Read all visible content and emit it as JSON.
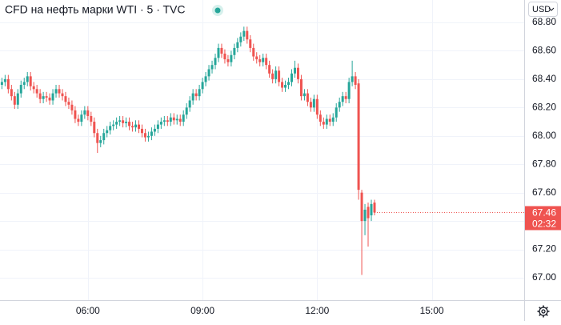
{
  "chart_data": {
    "type": "candlestick",
    "title": "CFD на нефть марки WTI · 5 · TVC",
    "currency": "USD",
    "countdown": "02:32",
    "up_color": "#26a69a",
    "down_color": "#ef5350",
    "grid": true,
    "x": [
      "03:45",
      "03:50",
      "03:55",
      "04:00",
      "04:05",
      "04:10",
      "04:15",
      "04:20",
      "04:25",
      "04:30",
      "04:35",
      "04:40",
      "04:45",
      "04:50",
      "04:55",
      "05:00",
      "05:05",
      "05:10",
      "05:15",
      "05:20",
      "05:25",
      "05:30",
      "05:35",
      "05:40",
      "05:45",
      "05:50",
      "05:55",
      "06:00",
      "06:05",
      "06:10",
      "06:15",
      "06:20",
      "06:25",
      "06:30",
      "06:35",
      "06:40",
      "06:45",
      "06:50",
      "06:55",
      "07:00",
      "07:05",
      "07:10",
      "07:15",
      "07:20",
      "07:25",
      "07:30",
      "07:35",
      "07:40",
      "07:45",
      "07:50",
      "07:55",
      "08:00",
      "08:05",
      "08:10",
      "08:15",
      "08:20",
      "08:25",
      "08:30",
      "08:35",
      "08:40",
      "08:45",
      "08:50",
      "08:55",
      "09:00",
      "09:05",
      "09:10",
      "09:15",
      "09:20",
      "09:25",
      "09:30",
      "09:35",
      "09:40",
      "09:45",
      "09:50",
      "09:55",
      "10:00",
      "10:05",
      "10:10",
      "10:15",
      "10:20",
      "10:25",
      "10:30",
      "10:35",
      "10:40",
      "10:45",
      "10:50",
      "10:55",
      "11:00",
      "11:05",
      "11:10",
      "11:15",
      "11:20",
      "11:25",
      "11:30",
      "11:35",
      "11:40",
      "11:45",
      "11:50",
      "11:55",
      "12:00",
      "12:05",
      "12:10",
      "12:15",
      "12:20",
      "12:25",
      "12:30",
      "12:35",
      "12:40",
      "12:45",
      "12:50",
      "12:55",
      "13:00",
      "13:05",
      "13:10",
      "13:15",
      "13:20",
      "13:25",
      "13:30"
    ],
    "open": [
      68.36,
      68.38,
      68.4,
      68.33,
      68.28,
      68.22,
      68.3,
      68.36,
      68.38,
      68.42,
      68.35,
      68.33,
      68.3,
      68.26,
      68.28,
      68.27,
      68.25,
      68.3,
      68.33,
      68.3,
      68.28,
      68.24,
      68.22,
      68.18,
      68.12,
      68.1,
      68.15,
      68.18,
      68.14,
      68.1,
      68.02,
      67.95,
      67.97,
      68.02,
      68.04,
      68.07,
      68.08,
      68.1,
      68.11,
      68.09,
      68.1,
      68.07,
      68.06,
      68.08,
      68.05,
      68.02,
      67.99,
      68.0,
      68.03,
      68.05,
      68.08,
      68.1,
      68.11,
      68.1,
      68.13,
      68.11,
      68.12,
      68.1,
      68.15,
      68.2,
      68.25,
      68.3,
      68.28,
      68.33,
      68.38,
      68.42,
      68.47,
      68.5,
      68.55,
      68.62,
      68.58,
      68.54,
      68.52,
      68.57,
      68.62,
      68.66,
      68.7,
      68.74,
      68.68,
      68.62,
      68.56,
      68.54,
      68.52,
      68.55,
      68.5,
      68.44,
      68.4,
      68.46,
      68.38,
      68.34,
      68.36,
      68.38,
      68.44,
      68.48,
      68.4,
      68.28,
      68.3,
      68.24,
      68.2,
      68.26,
      68.15,
      68.1,
      68.08,
      68.12,
      68.1,
      68.13,
      68.2,
      68.24,
      68.28,
      68.26,
      68.38,
      68.42,
      68.37,
      67.6,
      67.4,
      67.5,
      67.44,
      67.53
    ],
    "high": [
      68.41,
      68.43,
      68.43,
      68.36,
      68.31,
      68.33,
      68.39,
      68.41,
      68.45,
      68.45,
      68.38,
      68.36,
      68.33,
      68.31,
      68.31,
      68.3,
      68.33,
      68.36,
      68.36,
      68.33,
      68.31,
      68.27,
      68.25,
      68.21,
      68.15,
      68.18,
      68.21,
      68.21,
      68.17,
      68.13,
      68.05,
      68.0,
      68.05,
      68.07,
      68.1,
      68.11,
      68.13,
      68.14,
      68.14,
      68.13,
      68.13,
      68.1,
      68.11,
      68.11,
      68.08,
      68.05,
      68.03,
      68.06,
      68.08,
      68.11,
      68.13,
      68.14,
      68.14,
      68.16,
      68.16,
      68.15,
      68.15,
      68.18,
      68.23,
      68.28,
      68.33,
      68.33,
      68.36,
      68.41,
      68.45,
      68.5,
      68.53,
      68.58,
      68.65,
      68.65,
      68.61,
      68.57,
      68.6,
      68.65,
      68.69,
      68.73,
      68.77,
      68.77,
      68.71,
      68.65,
      68.59,
      68.57,
      68.58,
      68.58,
      68.53,
      68.47,
      68.49,
      68.49,
      68.41,
      68.39,
      68.41,
      68.47,
      68.53,
      68.51,
      68.43,
      68.33,
      68.33,
      68.27,
      68.29,
      68.29,
      68.18,
      68.13,
      68.15,
      68.15,
      68.16,
      68.23,
      68.27,
      68.31,
      68.31,
      68.41,
      68.53,
      68.45,
      68.4,
      67.62,
      67.52,
      67.53,
      67.55,
      67.55
    ],
    "low": [
      68.33,
      68.35,
      68.3,
      68.25,
      68.19,
      68.19,
      68.27,
      68.33,
      68.35,
      68.32,
      68.3,
      68.27,
      68.23,
      68.23,
      68.24,
      68.22,
      68.22,
      68.27,
      68.27,
      68.25,
      68.21,
      68.19,
      68.15,
      68.09,
      68.07,
      68.07,
      68.12,
      68.11,
      68.07,
      67.99,
      67.88,
      67.92,
      67.94,
      67.99,
      68.01,
      68.04,
      68.05,
      68.07,
      68.06,
      68.06,
      68.04,
      68.03,
      68.03,
      68.02,
      67.99,
      67.96,
      67.96,
      67.97,
      68.0,
      68.02,
      68.05,
      68.07,
      68.07,
      68.07,
      68.08,
      68.08,
      68.07,
      68.07,
      68.12,
      68.17,
      68.22,
      68.25,
      68.25,
      68.3,
      68.35,
      68.39,
      68.44,
      68.47,
      68.52,
      68.55,
      68.51,
      68.49,
      68.49,
      68.54,
      68.59,
      68.63,
      68.67,
      68.65,
      68.59,
      68.53,
      68.51,
      68.49,
      68.49,
      68.47,
      68.41,
      68.37,
      68.37,
      68.35,
      68.31,
      68.31,
      68.33,
      68.35,
      68.41,
      68.37,
      68.25,
      68.25,
      68.21,
      68.17,
      68.17,
      68.12,
      68.07,
      68.05,
      68.05,
      68.07,
      68.07,
      68.1,
      68.17,
      68.21,
      68.23,
      68.23,
      68.35,
      68.33,
      67.55,
      67.02,
      67.3,
      67.22,
      67.4,
      67.44
    ],
    "close": [
      68.38,
      68.4,
      68.33,
      68.28,
      68.22,
      68.3,
      68.36,
      68.38,
      68.42,
      68.35,
      68.33,
      68.3,
      68.26,
      68.28,
      68.27,
      68.25,
      68.3,
      68.33,
      68.3,
      68.28,
      68.24,
      68.22,
      68.18,
      68.12,
      68.1,
      68.15,
      68.18,
      68.14,
      68.1,
      68.02,
      67.95,
      67.97,
      68.02,
      68.04,
      68.07,
      68.08,
      68.1,
      68.11,
      68.09,
      68.1,
      68.07,
      68.06,
      68.08,
      68.05,
      68.02,
      67.99,
      68.0,
      68.03,
      68.05,
      68.08,
      68.1,
      68.11,
      68.1,
      68.13,
      68.11,
      68.12,
      68.1,
      68.15,
      68.2,
      68.25,
      68.3,
      68.28,
      68.33,
      68.38,
      68.42,
      68.47,
      68.5,
      68.55,
      68.62,
      68.58,
      68.54,
      68.52,
      68.57,
      68.62,
      68.66,
      68.7,
      68.74,
      68.68,
      68.62,
      68.56,
      68.54,
      68.52,
      68.55,
      68.5,
      68.44,
      68.4,
      68.46,
      68.38,
      68.34,
      68.36,
      68.38,
      68.44,
      68.48,
      68.4,
      68.28,
      68.3,
      68.24,
      68.2,
      68.26,
      68.15,
      68.1,
      68.08,
      68.12,
      68.1,
      68.13,
      68.2,
      68.24,
      68.28,
      68.26,
      68.38,
      68.42,
      68.36,
      67.62,
      67.4,
      67.48,
      67.42,
      67.52,
      67.46
    ],
    "xlim": [
      "03:42",
      "17:25"
    ],
    "xticks": [
      "06:00",
      "09:00",
      "12:00",
      "15:00"
    ],
    "ylim": [
      66.842,
      68.958
    ],
    "yticks": [
      {
        "value": 67.0,
        "label": "67.00"
      },
      {
        "value": 67.2,
        "label": "67.20"
      },
      {
        "value": 67.4,
        "label": "67.40"
      },
      {
        "value": 67.6,
        "label": "67.60"
      },
      {
        "value": 67.8,
        "label": "67.80"
      },
      {
        "value": 68.0,
        "label": "68.00"
      },
      {
        "value": 68.2,
        "label": "68.20"
      },
      {
        "value": 68.4,
        "label": "68.40"
      },
      {
        "value": 68.6,
        "label": "68.60"
      },
      {
        "value": 68.8,
        "label": "68.80"
      }
    ]
  }
}
